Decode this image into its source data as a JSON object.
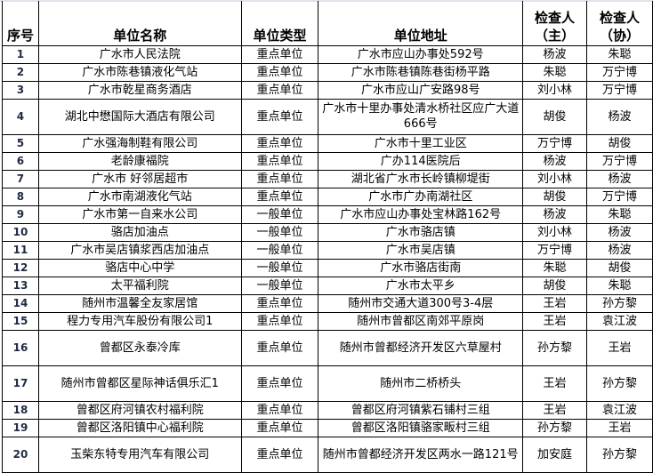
{
  "headers": [
    "序号",
    "单位名称",
    "单位类型",
    "单位地址",
    "检查人（主）",
    "检查人（协）"
  ],
  "rows": [
    [
      "1",
      "广水市人民法院",
      "重点单位",
      "广水市应山办事处592号",
      "杨波",
      "朱聪"
    ],
    [
      "2",
      "广水市陈巷镇液化气站",
      "重点单位",
      "广水市陈巷镇陈巷街杨平路",
      "朱聪",
      "万宁博"
    ],
    [
      "3",
      "广水市乾星商务酒店",
      "重点单位",
      "广水市应山广安路98号",
      "刘小林",
      "万宁博"
    ],
    [
      "4",
      "湖北中懋国际大酒店有限公司",
      "重点单位",
      "广水市十里办事处清水桥社区应广大道666号",
      "胡俊",
      "杨波"
    ],
    [
      "5",
      "广水强海制鞋有限公司",
      "重点单位",
      "广水市十里工业区",
      "万宁博",
      "胡俊"
    ],
    [
      "6",
      "老龄康福院",
      "重点单位",
      "广办114医院后",
      "杨波",
      "万宁博"
    ],
    [
      "7",
      "广水市 好邻居超市",
      "重点单位",
      "湖北省广水市长岭镇柳堤街",
      "刘小林",
      "杨波"
    ],
    [
      "8",
      "广水市南湖液化气站",
      "重点单位",
      "广水市广办南湖社区",
      "胡俊",
      "万宁博"
    ],
    [
      "9",
      "广水市第一自来水公司",
      "一般单位",
      "广水市应山办事处宝林路162号",
      "杨波",
      "朱聪"
    ],
    [
      "10",
      "骆店加油点",
      "一般单位",
      "广水市骆店镇",
      "刘小林",
      "杨波"
    ],
    [
      "11",
      "广水市吴店镇浆西店加油点",
      "一般单位",
      "广水市吴店镇",
      "万宁博",
      "杨波"
    ],
    [
      "12",
      "骆店中心中学",
      "一般单位",
      "广水市骆店街南",
      "朱聪",
      "胡俊"
    ],
    [
      "13",
      "太平福利院",
      "一般单位",
      "广水市太平乡",
      "胡俊",
      "朱聪"
    ],
    [
      "14",
      "随州市温馨全友家居馆",
      "重点单位",
      "随州市交通大道300号3-4层",
      "王岩",
      "孙方黎"
    ],
    [
      "15",
      "程力专用汽车股份有限公司1",
      "重点单位",
      "随州市曾都区南郊平原岗",
      "王岩",
      "袁江波"
    ],
    [
      "16",
      "曾都区永泰冷库",
      "重点单位",
      "随州市曾都经济开发区六草屋村",
      "孙方黎",
      "王岩"
    ],
    [
      "17",
      "随州市曾都区星际神话俱乐汇1",
      "重点单位",
      "随州市二桥桥头",
      "王岩",
      "孙方黎"
    ],
    [
      "18",
      "曾都区府河镇农村福利院",
      "重点单位",
      "曾都区府河镇紫石铺村三组",
      "王岩",
      "袁江波"
    ],
    [
      "19",
      "曾都区洛阳镇中心福利院",
      "重点单位",
      "曾都区洛阳镇骆家畈村三组",
      "孙方黎",
      "王岩"
    ],
    [
      "20",
      "玉柴东特专用汽车有限公司",
      "重点单位",
      "随州市曾都经济开发区两水一路121号",
      "加安庭",
      "孙方黎"
    ]
  ]
}
